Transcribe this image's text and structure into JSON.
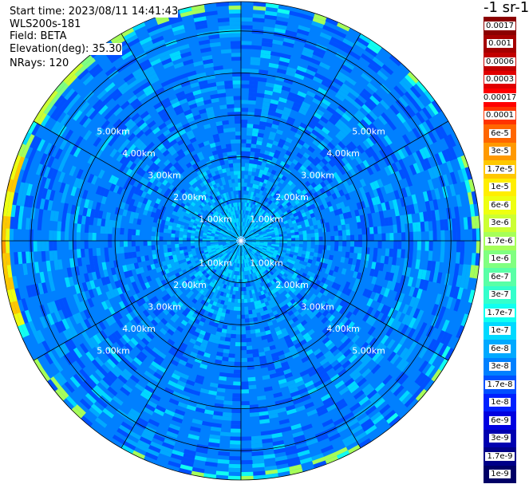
{
  "header": {
    "start_time": "Start time: 2023/08/11 14:41:43",
    "instrument": "WLS200s-181",
    "field": "Field: BETA",
    "elevation": "Elevation(deg): 35.30",
    "nrays": "NRays: 120"
  },
  "unit_label": "-1 sr-1",
  "range_rings": {
    "labels": [
      "1.00km",
      "2.00km",
      "3.00km",
      "4.00km",
      "5.00km"
    ],
    "ring_km": [
      1,
      2,
      3,
      4,
      5
    ],
    "max_km": 5.7
  },
  "spokes_deg": [
    0,
    30,
    60,
    90,
    120,
    150,
    180,
    210,
    240,
    270,
    300,
    330
  ],
  "colorbar": [
    {
      "label": "0.0017",
      "color": "#8b0000",
      "text": "#ffffff"
    },
    {
      "label": "0.001",
      "color": "#a50000",
      "text": "#ffffff"
    },
    {
      "label": "0.0006",
      "color": "#c20000",
      "text": "#ffffff"
    },
    {
      "label": "0.0003",
      "color": "#e00000",
      "text": "#ffffff"
    },
    {
      "label": "0.00017",
      "color": "#ff0000",
      "text": "#ffffff"
    },
    {
      "label": "0.0001",
      "color": "#ff3300",
      "text": "#000000"
    },
    {
      "label": "6e-5",
      "color": "#ff6600",
      "text": "#000000"
    },
    {
      "label": "3e-5",
      "color": "#ff9900",
      "text": "#000000"
    },
    {
      "label": "1.7e-5",
      "color": "#ffc800",
      "text": "#000000"
    },
    {
      "label": "1e-5",
      "color": "#ffee00",
      "text": "#000000"
    },
    {
      "label": "6e-6",
      "color": "#eeff11",
      "text": "#000000"
    },
    {
      "label": "3e-6",
      "color": "#ccff33",
      "text": "#000000"
    },
    {
      "label": "1.7e-6",
      "color": "#a6ff59",
      "text": "#000000"
    },
    {
      "label": "1e-6",
      "color": "#80ff80",
      "text": "#000000"
    },
    {
      "label": "6e-7",
      "color": "#59ffa6",
      "text": "#000000"
    },
    {
      "label": "3e-7",
      "color": "#33ffcc",
      "text": "#000000"
    },
    {
      "label": "1.7e-7",
      "color": "#11fff0",
      "text": "#000000"
    },
    {
      "label": "1e-7",
      "color": "#00d9ff",
      "text": "#000000"
    },
    {
      "label": "6e-8",
      "color": "#00a9ff",
      "text": "#000000"
    },
    {
      "label": "3e-8",
      "color": "#0080ff",
      "text": "#000000"
    },
    {
      "label": "1.7e-8",
      "color": "#0050ff",
      "text": "#ffffff"
    },
    {
      "label": "1e-8",
      "color": "#0020ff",
      "text": "#ffffff"
    },
    {
      "label": "6e-9",
      "color": "#0000e0",
      "text": "#ffffff"
    },
    {
      "label": "3e-9",
      "color": "#0000b0",
      "text": "#ffffff"
    },
    {
      "label": "1.7e-9",
      "color": "#000088",
      "text": "#ffffff"
    },
    {
      "label": "1e-9",
      "color": "#000066",
      "text": "#ffffff"
    }
  ],
  "palette": {
    "background": "#ffffff",
    "ring_line": "#000000",
    "label_text": "#ffffff"
  }
}
